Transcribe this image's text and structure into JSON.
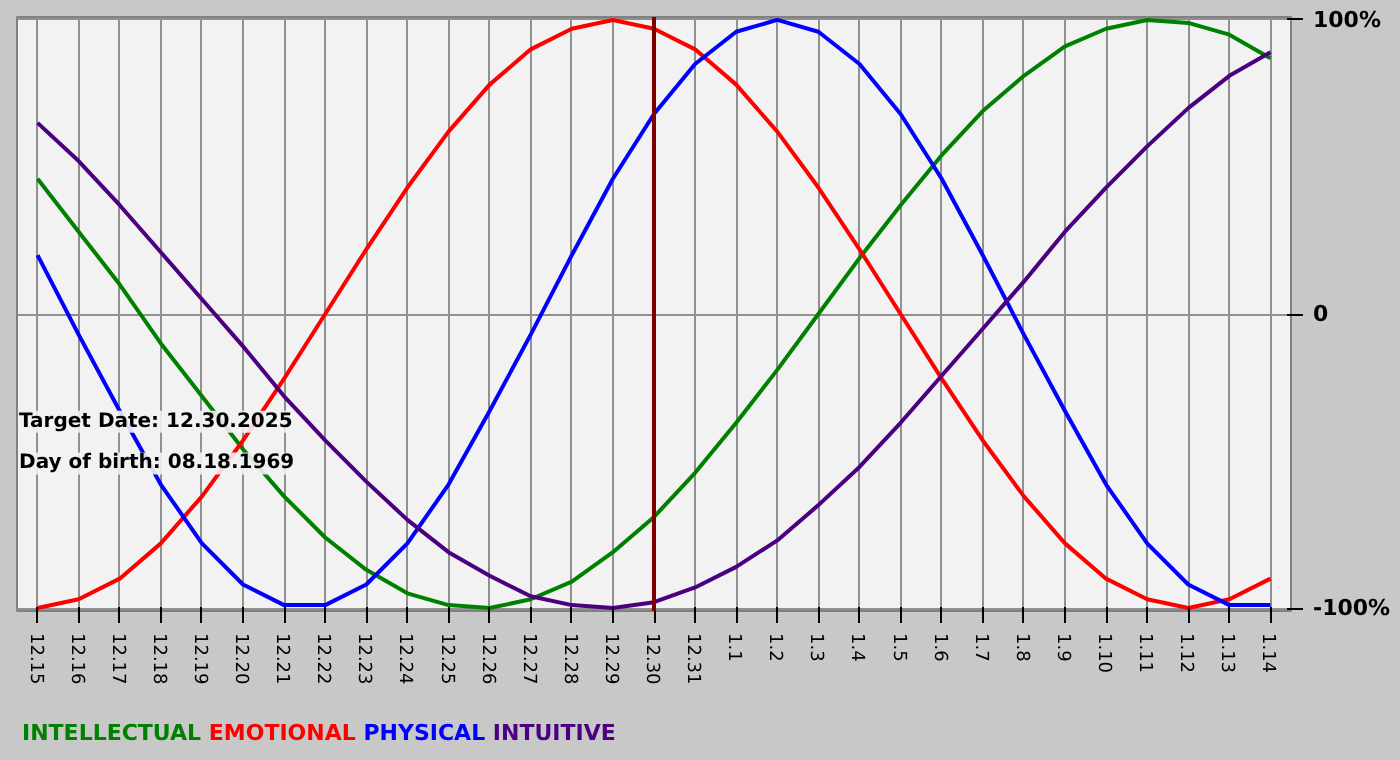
{
  "chart_data": {
    "type": "line",
    "categories": [
      "12.15",
      "12.16",
      "12.17",
      "12.18",
      "12.19",
      "12.20",
      "12.21",
      "12.22",
      "12.23",
      "12.24",
      "12.25",
      "12.26",
      "12.27",
      "12.28",
      "12.29",
      "12.30",
      "12.31",
      "1.1",
      "1.2",
      "1.3",
      "1.4",
      "1.5",
      "1.6",
      "1.7",
      "1.8",
      "1.9",
      "1.10",
      "1.11",
      "1.12",
      "1.13",
      "1.14"
    ],
    "series": [
      {
        "name": "INTELLECTUAL",
        "color": "#008000",
        "values": [
          46,
          28,
          10,
          -10,
          -28,
          -46,
          -62,
          -76,
          -87,
          -95,
          -99,
          -100,
          -97,
          -91,
          -81,
          -69,
          -54,
          -37,
          -19,
          0,
          19,
          37,
          54,
          69,
          81,
          91,
          97,
          100,
          99,
          95,
          87
        ]
      },
      {
        "name": "EMOTIONAL",
        "color": "#ff0000",
        "values": [
          -100,
          -97,
          -90,
          -78,
          -62,
          -43,
          -22,
          0,
          22,
          43,
          62,
          78,
          90,
          97,
          100,
          97,
          90,
          78,
          62,
          43,
          22,
          0,
          -22,
          -43,
          -62,
          -78,
          -90,
          -97,
          -100,
          -97,
          -90
        ]
      },
      {
        "name": "PHYSICAL",
        "color": "#0000ff",
        "values": [
          20,
          -7,
          -33,
          -58,
          -78,
          -92,
          -99,
          -99,
          -92,
          -78,
          -58,
          -33,
          -7,
          20,
          46,
          68,
          85,
          96,
          100,
          96,
          85,
          68,
          46,
          20,
          -7,
          -33,
          -58,
          -78,
          -92,
          -99,
          -99
        ]
      },
      {
        "name": "INTUITIVE",
        "color": "#4b0082",
        "values": [
          65,
          52,
          37,
          21,
          5,
          -11,
          -28,
          -43,
          -57,
          -70,
          -81,
          -89,
          -96,
          -99,
          -100,
          -98,
          -93,
          -86,
          -77,
          -65,
          -52,
          -37,
          -21,
          -5,
          11,
          28,
          43,
          57,
          70,
          81,
          89
        ]
      }
    ],
    "ylim": [
      -101,
      101
    ],
    "yticks": [
      {
        "value": 100,
        "label": "100%"
      },
      0,
      {
        "value": -100,
        "label": "-100%"
      }
    ],
    "grid": true,
    "legend": "bottom",
    "marker": "none",
    "line_style": "solid",
    "ref_lines": [
      {
        "axis": "x",
        "value": "12.30",
        "color": "#800000"
      }
    ],
    "annotations": [
      "Target Date: 12.30.2025",
      "Day of birth: 08.18.1969"
    ]
  }
}
